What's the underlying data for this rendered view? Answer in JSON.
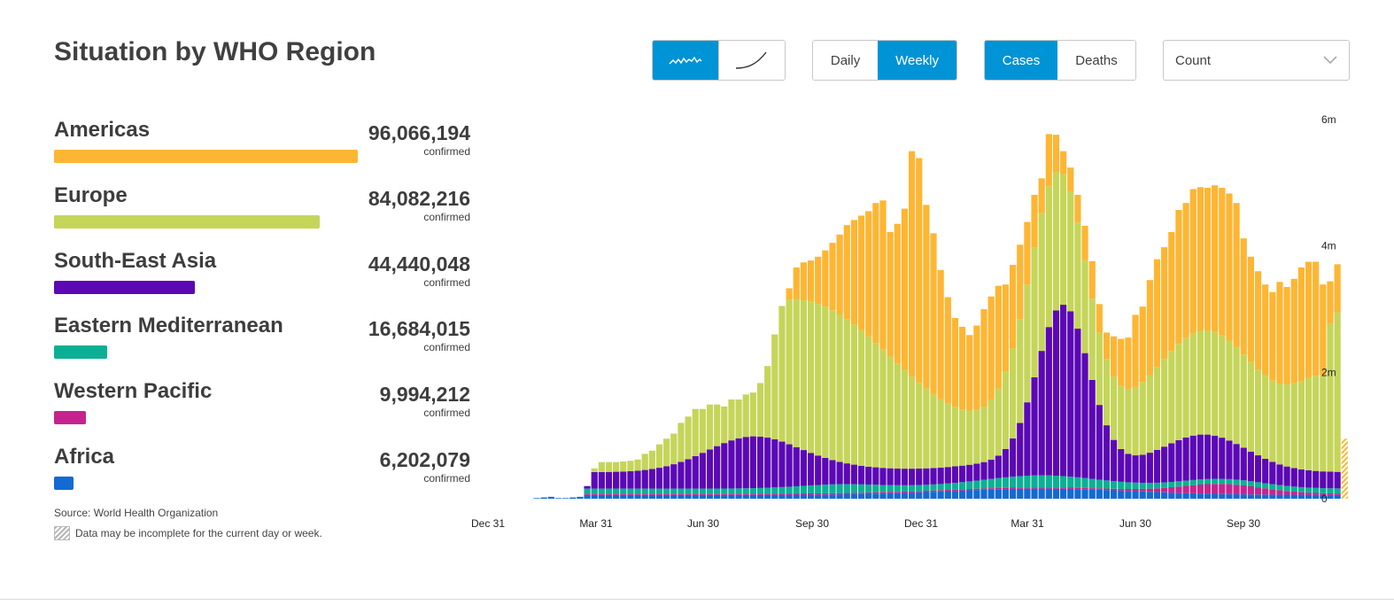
{
  "header": {
    "title": "Situation by WHO Region"
  },
  "controls": {
    "scale_icons": [
      "weekly-wave-icon",
      "cumulative-curve-icon"
    ],
    "period": [
      "Daily",
      "Weekly"
    ],
    "metric": [
      "Cases",
      "Deaths"
    ],
    "measure": "Count"
  },
  "regions": [
    {
      "name": "Americas",
      "value": "96,066,194",
      "unit": "confirmed",
      "color": "#FDB634",
      "share": 1.0
    },
    {
      "name": "Europe",
      "value": "84,082,216",
      "unit": "confirmed",
      "color": "#C5D55A",
      "share": 0.875
    },
    {
      "name": "South-East Asia",
      "value": "44,440,048",
      "unit": "confirmed",
      "color": "#5B08B5",
      "share": 0.463
    },
    {
      "name": "Eastern Mediterranean",
      "value": "16,684,015",
      "unit": "confirmed",
      "color": "#0DAF94",
      "share": 0.174
    },
    {
      "name": "Western Pacific",
      "value": "9,994,212",
      "unit": "confirmed",
      "color": "#C5248F",
      "share": 0.104
    },
    {
      "name": "Africa",
      "value": "6,202,079",
      "unit": "confirmed",
      "color": "#126AD2",
      "share": 0.065
    }
  ],
  "footer": {
    "source": "Source: World Health Organization",
    "note": "Data may be incomplete for the current day or week."
  },
  "chart_data": {
    "type": "bar",
    "stacked": true,
    "x_tick_labels": [
      "Dec 31",
      "Mar 31",
      "Jun 30",
      "Sep 30",
      "Dec 31",
      "Mar 31",
      "Jun 30",
      "Sep 30"
    ],
    "y_tick_labels": [
      "0",
      "2m",
      "4m",
      "6m"
    ],
    "ylim": [
      0,
      6000000
    ],
    "series_order": [
      "Africa",
      "Western Pacific",
      "Eastern Mediterranean",
      "South-East Asia",
      "Europe",
      "Americas"
    ],
    "colors": [
      "#126AD2",
      "#C5248F",
      "#0DAF94",
      "#5B08B5",
      "#C5D55A",
      "#FDB634"
    ],
    "totals_m": [
      0.0,
      0.0,
      0.0,
      0.01,
      0.02,
      0.03,
      0.01,
      0.01,
      0.02,
      0.03,
      0.2,
      0.48,
      0.58,
      0.58,
      0.58,
      0.59,
      0.6,
      0.62,
      0.71,
      0.76,
      0.86,
      0.95,
      1.03,
      1.2,
      1.3,
      1.42,
      1.42,
      1.49,
      1.49,
      1.46,
      1.57,
      1.57,
      1.65,
      1.68,
      1.83,
      2.1,
      2.6,
      3.05,
      3.33,
      3.66,
      3.74,
      3.77,
      3.83,
      3.93,
      4.05,
      4.18,
      4.33,
      4.41,
      4.48,
      4.55,
      4.68,
      4.72,
      4.22,
      4.35,
      4.59,
      5.5,
      5.39,
      4.65,
      4.2,
      3.62,
      3.19,
      2.86,
      2.72,
      2.59,
      2.74,
      3.0,
      3.2,
      3.37,
      3.39,
      3.7,
      4.02,
      4.38,
      4.81,
      5.07,
      5.77,
      5.76,
      5.5,
      5.24,
      4.81,
      4.32,
      3.76,
      3.08,
      2.63,
      2.57,
      2.53,
      2.55,
      2.91,
      3.04,
      3.46,
      3.79,
      3.98,
      4.22,
      4.57,
      4.68,
      4.9,
      4.93,
      4.92,
      4.96,
      4.92,
      4.83,
      4.68,
      4.12,
      3.83,
      3.6,
      3.39,
      3.27,
      3.43,
      3.35,
      3.48,
      3.66,
      3.75,
      3.75,
      3.39,
      3.44,
      3.71
    ]
  }
}
